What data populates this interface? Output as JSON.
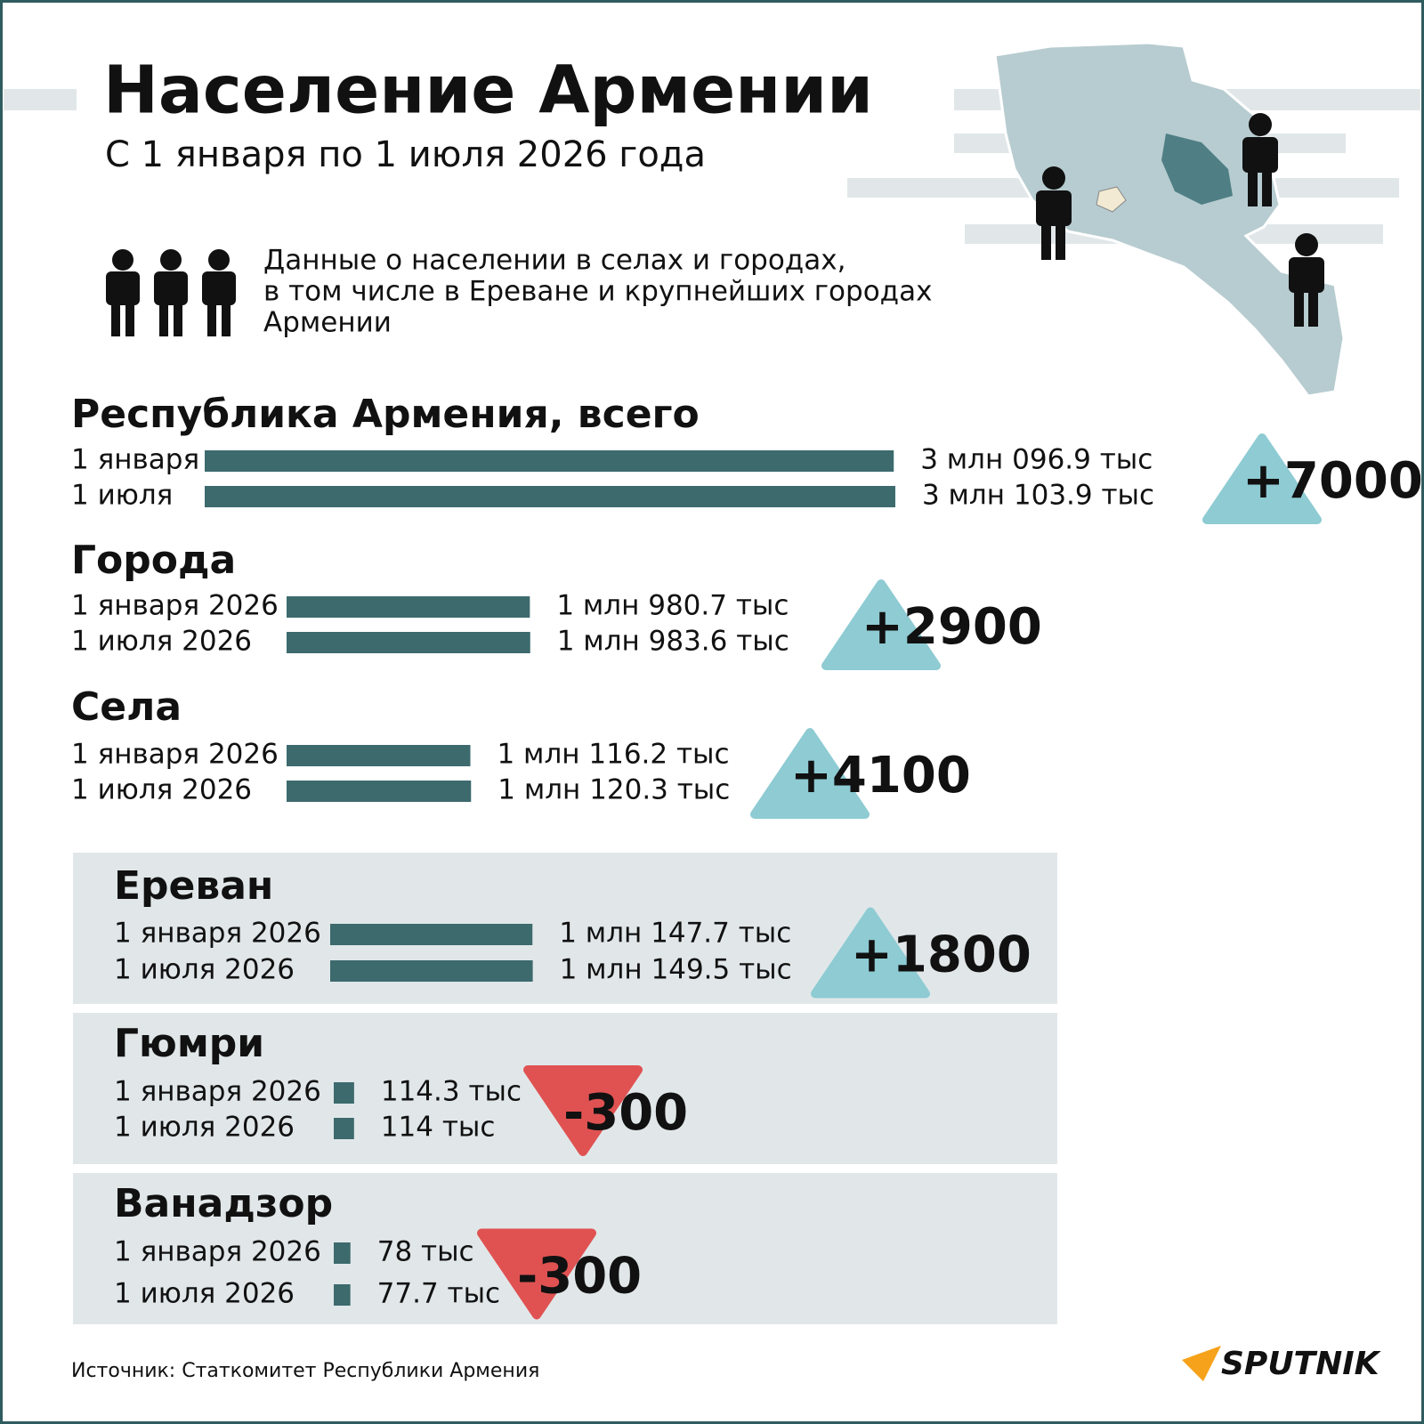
{
  "header": {
    "title": "Население Армении",
    "subtitle": "С 1 января по 1 июля 2026 года",
    "description": [
      "Данные о населении в селах и городах,",
      "в том числе в Ереване и крупнейших городах",
      "Армении"
    ]
  },
  "sections": [
    {
      "title": "Республика Армения, всего",
      "rows": [
        {
          "label": "1 января",
          "value": 3096.9,
          "value_label": "3 млн 096.9 тыс"
        },
        {
          "label": "1 июля",
          "value": 3103.9,
          "value_label": "3 млн 103.9 тыс"
        }
      ],
      "change": {
        "value": 7000,
        "label": "+7000"
      }
    },
    {
      "title": "Города",
      "rows": [
        {
          "label": "1 января 2026",
          "value": 1980.7,
          "value_label": "1 млн 980.7 тыс"
        },
        {
          "label": "1 июля 2026",
          "value": 1983.6,
          "value_label": "1 млн 983.6 тыс"
        }
      ],
      "change": {
        "value": 2900,
        "label": "+2900"
      }
    },
    {
      "title": "Села",
      "rows": [
        {
          "label": "1 января 2026",
          "value": 1116.2,
          "value_label": "1 млн 116.2 тыс"
        },
        {
          "label": "1 июля 2026",
          "value": 1120.3,
          "value_label": "1 млн 120.3 тыс"
        }
      ],
      "change": {
        "value": 4100,
        "label": "+4100"
      }
    },
    {
      "title": "Ереван",
      "rows": [
        {
          "label": "1 января 2026",
          "value": 1147.7,
          "value_label": "1 млн 147.7 тыс"
        },
        {
          "label": "1 июля 2026",
          "value": 1149.5,
          "value_label": "1 млн 149.5 тыс"
        }
      ],
      "change": {
        "value": 1800,
        "label": "+1800"
      }
    },
    {
      "title": "Гюмри",
      "rows": [
        {
          "label": "1 января 2026",
          "value": 114.3,
          "value_label": "114.3 тыс"
        },
        {
          "label": "1 июля 2026",
          "value": 114,
          "value_label": "114 тыс"
        }
      ],
      "change": {
        "value": -300,
        "label": "-300"
      }
    },
    {
      "title": "Ванадзор",
      "rows": [
        {
          "label": "1 января 2026",
          "value": 78,
          "value_label": "78 тыс"
        },
        {
          "label": "1 июля 2026",
          "value": 77.7,
          "value_label": "77.7 тыс"
        }
      ],
      "change": {
        "value": -300,
        "label": "-300"
      }
    }
  ],
  "source": "Источник: Статкомитет Республики Армения",
  "brand": "SPUTNIK"
}
